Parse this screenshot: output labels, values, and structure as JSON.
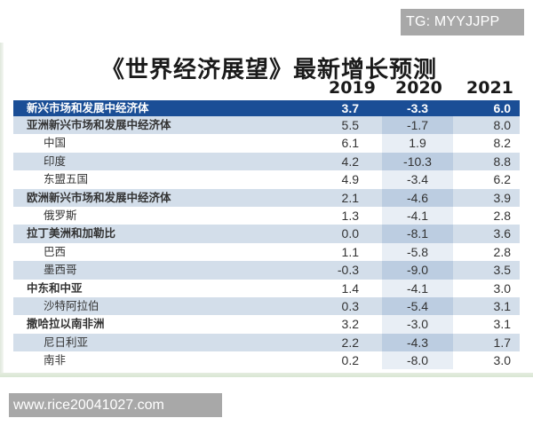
{
  "watermarks": {
    "top": "TG: MYYJJPP",
    "bottom": "www.rice20041027.com"
  },
  "title": "《世界经济展望》最新增长预测",
  "columns": [
    "2019",
    "2020",
    "2021"
  ],
  "colors": {
    "header_row": "#1a4e96",
    "shaded_row": "#d3deea",
    "shaded_2020_col": "#bccde1",
    "plain_2020_col": "#e8eef5"
  },
  "rows": [
    {
      "name": "新兴市场和发展中经济体",
      "v2019": "3.7",
      "v2020": "-3.3",
      "v2021": "6.0",
      "level": "header"
    },
    {
      "name": "亚洲新兴市场和发展中经济体",
      "v2019": "5.5",
      "v2020": "-1.7",
      "v2021": "8.0",
      "level": "group"
    },
    {
      "name": "中国",
      "v2019": "6.1",
      "v2020": "1.9",
      "v2021": "8.2",
      "level": "sub"
    },
    {
      "name": "印度",
      "v2019": "4.2",
      "v2020": "-10.3",
      "v2021": "8.8",
      "level": "sub"
    },
    {
      "name": "东盟五国",
      "v2019": "4.9",
      "v2020": "-3.4",
      "v2021": "6.2",
      "level": "sub"
    },
    {
      "name": "欧洲新兴市场和发展中经济体",
      "v2019": "2.1",
      "v2020": "-4.6",
      "v2021": "3.9",
      "level": "group"
    },
    {
      "name": "俄罗斯",
      "v2019": "1.3",
      "v2020": "-4.1",
      "v2021": "2.8",
      "level": "sub"
    },
    {
      "name": "拉丁美洲和加勒比",
      "v2019": "0.0",
      "v2020": "-8.1",
      "v2021": "3.6",
      "level": "group"
    },
    {
      "name": "巴西",
      "v2019": "1.1",
      "v2020": "-5.8",
      "v2021": "2.8",
      "level": "sub"
    },
    {
      "name": "墨西哥",
      "v2019": "-0.3",
      "v2020": "-9.0",
      "v2021": "3.5",
      "level": "sub"
    },
    {
      "name": "中东和中亚",
      "v2019": "1.4",
      "v2020": "-4.1",
      "v2021": "3.0",
      "level": "group"
    },
    {
      "name": "沙特阿拉伯",
      "v2019": "0.3",
      "v2020": "-5.4",
      "v2021": "3.1",
      "level": "sub"
    },
    {
      "name": "撒哈拉以南非洲",
      "v2019": "3.2",
      "v2020": "-3.0",
      "v2021": "3.1",
      "level": "group"
    },
    {
      "name": "尼日利亚",
      "v2019": "2.2",
      "v2020": "-4.3",
      "v2021": "1.7",
      "level": "sub"
    },
    {
      "name": "南非",
      "v2019": "0.2",
      "v2020": "-8.0",
      "v2021": "3.0",
      "level": "sub"
    }
  ]
}
